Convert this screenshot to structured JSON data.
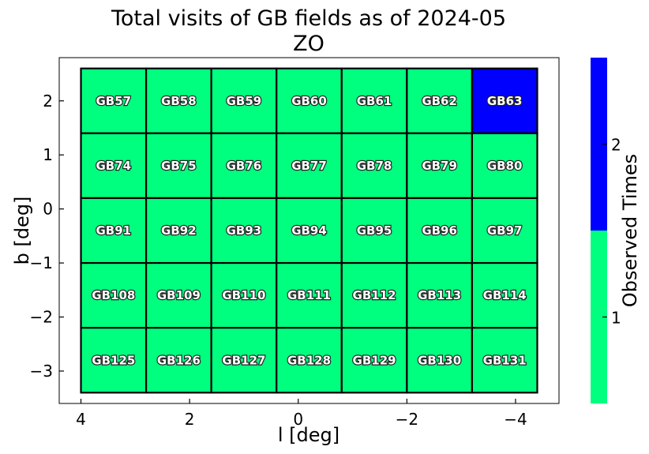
{
  "chart_data": {
    "type": "heatmap",
    "title": "Total visits of GB fields as of 2024-05",
    "subtitle": "ZO",
    "xlabel": "l [deg]",
    "ylabel": "b [deg]",
    "xlim": [
      4.4,
      -4.8
    ],
    "ylim": [
      -3.6,
      2.8
    ],
    "x_ticks": [
      {
        "value": 4,
        "label": "4"
      },
      {
        "value": 2,
        "label": "2"
      },
      {
        "value": 0,
        "label": "0"
      },
      {
        "value": -2,
        "label": "−2"
      },
      {
        "value": -4,
        "label": "−4"
      }
    ],
    "y_ticks": [
      {
        "value": 2,
        "label": "2"
      },
      {
        "value": 1,
        "label": "1"
      },
      {
        "value": 0,
        "label": "0"
      },
      {
        "value": -1,
        "label": "−1"
      },
      {
        "value": -2,
        "label": "−2"
      },
      {
        "value": -3,
        "label": "−3"
      }
    ],
    "columns_l": [
      3.4,
      2.2,
      1.0,
      -0.2,
      -1.4,
      -2.6,
      -3.8
    ],
    "rows_b": [
      2.0,
      0.8,
      -0.4,
      -1.6,
      -2.8
    ],
    "cell_width": 1.2,
    "cell_height": 1.2,
    "fields": [
      [
        "GB57",
        "GB58",
        "GB59",
        "GB60",
        "GB61",
        "GB62",
        "GB63"
      ],
      [
        "GB74",
        "GB75",
        "GB76",
        "GB77",
        "GB78",
        "GB79",
        "GB80"
      ],
      [
        "GB91",
        "GB92",
        "GB93",
        "GB94",
        "GB95",
        "GB96",
        "GB97"
      ],
      [
        "GB108",
        "GB109",
        "GB110",
        "GB111",
        "GB112",
        "GB113",
        "GB114"
      ],
      [
        "GB125",
        "GB126",
        "GB127",
        "GB128",
        "GB129",
        "GB130",
        "GB131"
      ]
    ],
    "values": [
      [
        1,
        1,
        1,
        1,
        1,
        1,
        2
      ],
      [
        1,
        1,
        1,
        1,
        1,
        1,
        1
      ],
      [
        1,
        1,
        1,
        1,
        1,
        1,
        1
      ],
      [
        1,
        1,
        1,
        1,
        1,
        1,
        1
      ],
      [
        1,
        1,
        1,
        1,
        1,
        1,
        1
      ]
    ],
    "colorbar": {
      "label": "Observed Times",
      "levels": [
        {
          "value": 1,
          "label": "1",
          "color": "#00ff7f"
        },
        {
          "value": 2,
          "label": "2",
          "color": "#0000ff"
        }
      ]
    },
    "grid": false
  }
}
